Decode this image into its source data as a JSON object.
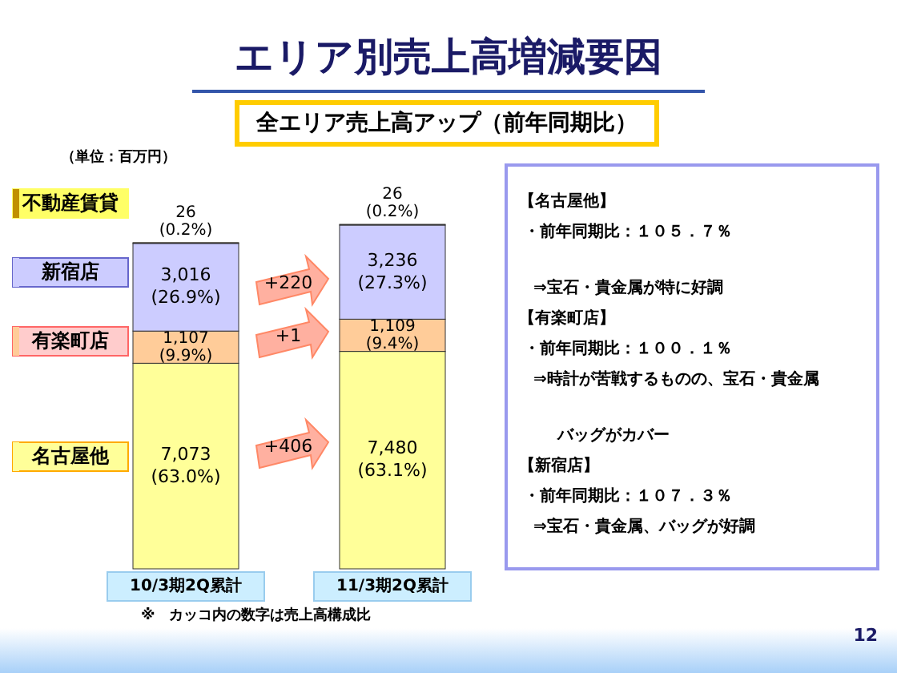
{
  "chart_data": {
    "type": "bar",
    "stacked": true,
    "title": "エリア別売上高増減要因",
    "subtitle": "全エリア売上高アップ（前年同期比）",
    "categories": [
      "10/3期2Q累計",
      "11/3期2Q累計"
    ],
    "series": [
      {
        "name": "名古屋他",
        "color": "#ffff99",
        "values": [
          7073,
          7480
        ],
        "value_labels": [
          "7,073 (63.0%)",
          "7,480 (63.1%)"
        ]
      },
      {
        "name": "有楽町店",
        "color": "#ffcc99",
        "values": [
          1107,
          1109
        ],
        "value_labels": [
          "1,107 (9.9%)",
          "1,109 (9.4%)"
        ]
      },
      {
        "name": "新宿店",
        "color": "#ccccff",
        "values": [
          3016,
          3236
        ],
        "value_labels": [
          "3,016 (26.9%)",
          "3,236 (27.3%)"
        ]
      },
      {
        "name": "不動産賃貸",
        "color": "#c09000",
        "values": [
          26,
          26
        ],
        "value_labels": [
          "26 (0.2%)",
          "26 (0.2%)"
        ]
      }
    ],
    "legend": "left",
    "annotations": [
      "（単位：百万円）",
      "+406",
      "+1",
      "+220",
      "【名古屋他】",
      "・前年同期比：１０５．７％",
      "⇒宝石・貴金属が特に好調",
      "【有楽町店】",
      "・前年同期比：１００．１％",
      "⇒時計が苦戦するものの、宝石・貴金属",
      "バッグがカバー",
      "【新宿店】",
      "・前年同期比：１０７．３％",
      "⇒宝石・貴金属、バッグが好調",
      "※　カッコ内の数字は売上高構成比",
      "12"
    ]
  }
}
